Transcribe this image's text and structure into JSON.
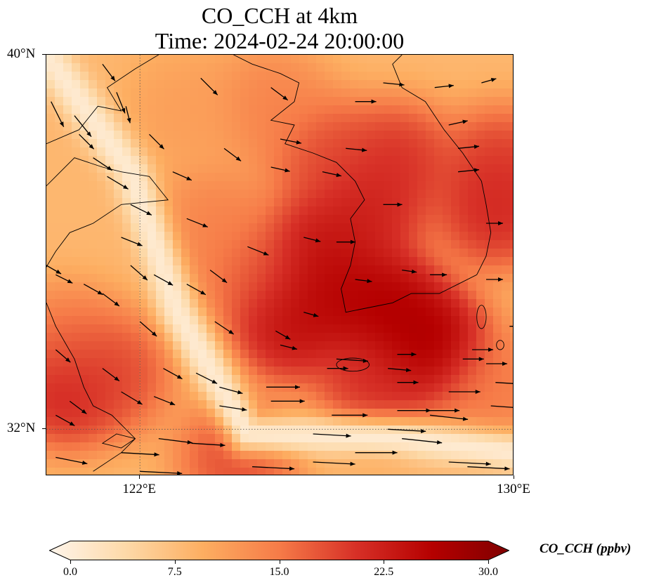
{
  "title": {
    "line1": "CO_CCH at 4km",
    "line2": "Time: 2024-02-24 20:00:00"
  },
  "map": {
    "extent": {
      "lon_min": 120.0,
      "lon_max": 130.0,
      "lat_min": 31.0,
      "lat_max": 40.0
    },
    "lat_ticks": [
      {
        "value": 40,
        "label": "40°N"
      },
      {
        "value": 32,
        "label": "32°N"
      }
    ],
    "lon_ticks": [
      {
        "value": 122,
        "label": "122°E"
      },
      {
        "value": 130,
        "label": "130°E"
      }
    ],
    "gridlines": {
      "lat": [
        32
      ],
      "lon": [
        122
      ],
      "style": "dotted"
    },
    "field_hotspots": [
      {
        "lon": 128.2,
        "lat": 33.8,
        "value": 29
      },
      {
        "lon": 127.3,
        "lat": 34.6,
        "value": 28
      },
      {
        "lon": 126.2,
        "lat": 34.9,
        "value": 27
      },
      {
        "lon": 125.2,
        "lat": 34.3,
        "value": 26
      },
      {
        "lon": 125.8,
        "lat": 35.8,
        "value": 25
      },
      {
        "lon": 126.8,
        "lat": 36.6,
        "value": 24
      },
      {
        "lon": 127.5,
        "lat": 37.7,
        "value": 22
      },
      {
        "lon": 126.0,
        "lat": 37.8,
        "value": 20
      },
      {
        "lon": 129.6,
        "lat": 36.7,
        "value": 23
      },
      {
        "lon": 129.7,
        "lat": 37.6,
        "value": 21
      },
      {
        "lon": 127.0,
        "lat": 33.0,
        "value": 22
      },
      {
        "lon": 124.5,
        "lat": 35.4,
        "value": 18
      },
      {
        "lon": 123.6,
        "lat": 36.4,
        "value": 15
      },
      {
        "lon": 124.8,
        "lat": 38.9,
        "value": 15
      },
      {
        "lon": 120.4,
        "lat": 32.9,
        "value": 24
      },
      {
        "lon": 121.4,
        "lat": 33.2,
        "value": 20
      },
      {
        "lon": 120.4,
        "lat": 33.8,
        "value": 16
      },
      {
        "lon": 124.1,
        "lat": 31.4,
        "value": 20
      },
      {
        "lon": 129.5,
        "lat": 32.9,
        "value": 16
      },
      {
        "lon": 123.0,
        "lat": 38.8,
        "value": 12
      }
    ],
    "field_background": 9,
    "field_low_band": {
      "value": 2,
      "points": [
        [
          120.0,
          40.0
        ],
        [
          121.8,
          37.5
        ],
        [
          122.8,
          34.5
        ],
        [
          124.3,
          31.9
        ],
        [
          127.5,
          31.8
        ],
        [
          130.0,
          31.5
        ]
      ]
    },
    "wind_vectors": [
      [
        120.1,
        39.0,
        0.3,
        -0.6
      ],
      [
        120.6,
        38.7,
        0.4,
        -0.5
      ],
      [
        120.7,
        38.3,
        0.35,
        -0.35
      ],
      [
        121.5,
        39.2,
        0.2,
        -0.5
      ],
      [
        121.7,
        38.9,
        0.1,
        -0.4
      ],
      [
        121.2,
        39.8,
        0.3,
        -0.4
      ],
      [
        123.3,
        39.5,
        0.4,
        -0.4
      ],
      [
        122.7,
        37.5,
        0.45,
        -0.2
      ],
      [
        122.2,
        38.3,
        0.35,
        -0.35
      ],
      [
        121.0,
        37.8,
        0.45,
        -0.3
      ],
      [
        121.3,
        37.4,
        0.5,
        -0.3
      ],
      [
        121.8,
        36.8,
        0.5,
        -0.25
      ],
      [
        121.6,
        36.1,
        0.5,
        -0.2
      ],
      [
        121.8,
        35.5,
        0.4,
        -0.35
      ],
      [
        120.8,
        35.1,
        0.45,
        -0.25
      ],
      [
        120.2,
        35.3,
        0.4,
        -0.2
      ],
      [
        120.0,
        35.5,
        0.35,
        -0.2
      ],
      [
        121.2,
        34.9,
        0.4,
        -0.3
      ],
      [
        122.3,
        35.3,
        0.45,
        -0.25
      ],
      [
        123.0,
        35.1,
        0.45,
        -0.25
      ],
      [
        123.5,
        35.4,
        0.4,
        -0.3
      ],
      [
        123.6,
        34.3,
        0.45,
        -0.3
      ],
      [
        122.0,
        34.3,
        0.4,
        -0.35
      ],
      [
        120.2,
        33.7,
        0.35,
        -0.3
      ],
      [
        121.2,
        33.3,
        0.4,
        -0.3
      ],
      [
        121.6,
        32.8,
        0.5,
        -0.3
      ],
      [
        120.5,
        32.6,
        0.4,
        -0.3
      ],
      [
        120.2,
        32.3,
        0.45,
        -0.25
      ],
      [
        122.3,
        32.7,
        0.5,
        -0.2
      ],
      [
        122.5,
        33.3,
        0.45,
        -0.25
      ],
      [
        123.2,
        33.2,
        0.5,
        -0.25
      ],
      [
        123.7,
        32.9,
        0.55,
        -0.15
      ],
      [
        123.7,
        32.5,
        0.65,
        -0.1
      ],
      [
        122.4,
        31.8,
        0.8,
        -0.1
      ],
      [
        123.1,
        31.7,
        0.8,
        -0.05
      ],
      [
        123.0,
        36.5,
        0.5,
        -0.2
      ],
      [
        124.3,
        35.9,
        0.5,
        -0.2
      ],
      [
        125.5,
        36.1,
        0.4,
        -0.1
      ],
      [
        125.0,
        38.2,
        0.5,
        -0.1
      ],
      [
        124.8,
        39.3,
        0.4,
        -0.3
      ],
      [
        123.8,
        38.0,
        0.4,
        -0.3
      ],
      [
        124.8,
        37.6,
        0.45,
        -0.1
      ],
      [
        125.9,
        37.5,
        0.45,
        -0.1
      ],
      [
        126.6,
        39.0,
        0.5,
        0.0
      ],
      [
        127.2,
        39.4,
        0.5,
        -0.05
      ],
      [
        128.3,
        39.3,
        0.45,
        0.05
      ],
      [
        129.3,
        39.4,
        0.35,
        0.1
      ],
      [
        128.6,
        38.5,
        0.45,
        0.1
      ],
      [
        128.8,
        37.5,
        0.5,
        0.05
      ],
      [
        129.4,
        36.4,
        0.4,
        0.0
      ],
      [
        128.8,
        38.0,
        0.5,
        0.05
      ],
      [
        126.4,
        38.0,
        0.5,
        -0.05
      ],
      [
        126.2,
        36.0,
        0.45,
        0.0
      ],
      [
        127.2,
        36.8,
        0.45,
        0.0
      ],
      [
        126.6,
        35.2,
        0.4,
        -0.05
      ],
      [
        127.6,
        35.4,
        0.35,
        -0.05
      ],
      [
        128.2,
        35.3,
        0.4,
        0.0
      ],
      [
        129.4,
        35.2,
        0.4,
        0.0
      ],
      [
        129.9,
        34.2,
        0.45,
        0.0
      ],
      [
        129.1,
        33.7,
        0.5,
        0.0
      ],
      [
        125.5,
        34.5,
        0.35,
        -0.1
      ],
      [
        125.0,
        33.8,
        0.4,
        -0.1
      ],
      [
        124.9,
        34.1,
        0.35,
        -0.2
      ],
      [
        126.0,
        33.3,
        0.5,
        0.0
      ],
      [
        127.5,
        33.6,
        0.45,
        0.0
      ],
      [
        127.3,
        33.3,
        0.55,
        -0.05
      ],
      [
        127.5,
        33.0,
        0.5,
        0.0
      ],
      [
        124.8,
        32.6,
        0.8,
        0.0
      ],
      [
        126.1,
        32.3,
        0.85,
        0.0
      ],
      [
        127.5,
        32.4,
        0.8,
        0.0
      ],
      [
        124.7,
        32.9,
        0.8,
        0.0
      ],
      [
        126.2,
        33.5,
        0.75,
        -0.05
      ],
      [
        128.2,
        32.4,
        0.7,
        0.0
      ],
      [
        128.9,
        33.5,
        0.5,
        0.0
      ],
      [
        129.4,
        33.4,
        0.5,
        0.0
      ],
      [
        128.6,
        32.8,
        0.75,
        0.0
      ],
      [
        128.2,
        32.3,
        0.9,
        -0.1
      ],
      [
        127.3,
        32.0,
        0.9,
        -0.05
      ],
      [
        127.6,
        31.8,
        0.95,
        -0.1
      ],
      [
        128.6,
        31.3,
        1.0,
        -0.05
      ],
      [
        125.7,
        31.9,
        0.9,
        -0.05
      ],
      [
        126.6,
        31.5,
        1.0,
        0.0
      ],
      [
        125.7,
        31.3,
        1.0,
        -0.05
      ],
      [
        121.6,
        31.5,
        0.9,
        -0.05
      ],
      [
        120.2,
        31.4,
        0.75,
        -0.15
      ],
      [
        122.0,
        31.1,
        1.0,
        -0.05
      ],
      [
        124.4,
        31.2,
        1.0,
        -0.05
      ],
      [
        129.0,
        31.2,
        1.0,
        -0.05
      ],
      [
        129.6,
        33.0,
        0.8,
        -0.05
      ],
      [
        129.5,
        32.5,
        0.7,
        -0.05
      ]
    ],
    "coastlines": [
      [
        [
          120.0,
          38.1
        ],
        [
          120.7,
          38.4
        ],
        [
          121.1,
          38.9
        ],
        [
          121.6,
          38.8
        ],
        [
          121.3,
          39.3
        ],
        [
          121.9,
          39.7
        ],
        [
          122.4,
          40.0
        ]
      ],
      [
        [
          120.0,
          37.2
        ],
        [
          120.6,
          37.8
        ],
        [
          121.2,
          37.6
        ],
        [
          121.6,
          37.5
        ],
        [
          122.2,
          37.4
        ],
        [
          122.6,
          36.9
        ],
        [
          121.6,
          36.8
        ],
        [
          121.0,
          36.4
        ],
        [
          120.5,
          36.2
        ],
        [
          120.2,
          35.8
        ],
        [
          119.9,
          35.3
        ]
      ],
      [
        [
          120.0,
          34.7
        ],
        [
          120.2,
          34.2
        ],
        [
          120.6,
          33.5
        ],
        [
          120.8,
          32.9
        ],
        [
          121.0,
          32.5
        ],
        [
          121.4,
          32.3
        ],
        [
          121.9,
          31.8
        ],
        [
          121.6,
          31.5
        ],
        [
          121.0,
          31.1
        ]
      ],
      [
        [
          121.9,
          31.8
        ],
        [
          121.6,
          31.6
        ],
        [
          121.2,
          31.7
        ],
        [
          121.5,
          31.9
        ],
        [
          121.9,
          31.8
        ]
      ],
      [
        [
          124.0,
          40.0
        ],
        [
          124.4,
          39.8
        ],
        [
          125.0,
          39.6
        ],
        [
          125.4,
          39.4
        ],
        [
          125.3,
          39.0
        ],
        [
          124.8,
          38.6
        ],
        [
          125.3,
          38.5
        ],
        [
          125.1,
          38.1
        ],
        [
          125.7,
          37.9
        ],
        [
          126.2,
          37.7
        ],
        [
          126.6,
          37.3
        ],
        [
          126.8,
          36.9
        ],
        [
          126.5,
          36.5
        ],
        [
          126.6,
          36.0
        ],
        [
          126.5,
          35.5
        ],
        [
          126.3,
          35.0
        ],
        [
          126.4,
          34.5
        ],
        [
          126.9,
          34.6
        ],
        [
          127.4,
          34.7
        ],
        [
          127.8,
          34.9
        ],
        [
          128.4,
          34.9
        ],
        [
          128.8,
          35.1
        ],
        [
          129.2,
          35.3
        ],
        [
          129.4,
          35.7
        ],
        [
          129.5,
          36.2
        ],
        [
          129.4,
          36.8
        ],
        [
          129.3,
          37.3
        ],
        [
          128.9,
          37.9
        ],
        [
          128.5,
          38.4
        ],
        [
          128.1,
          39.0
        ],
        [
          127.6,
          39.3
        ],
        [
          127.4,
          39.8
        ],
        [
          127.6,
          40.0
        ]
      ]
    ],
    "islands": [
      {
        "lon": 126.55,
        "lat": 33.38,
        "rx": 0.35,
        "ry": 0.14
      },
      {
        "lon": 129.3,
        "lat": 34.4,
        "rx": 0.1,
        "ry": 0.25
      },
      {
        "lon": 129.7,
        "lat": 33.8,
        "rx": 0.08,
        "ry": 0.1
      }
    ]
  },
  "colorbar": {
    "min": 0.0,
    "max": 30.0,
    "ticks": [
      "0.0",
      "7.5",
      "15.0",
      "22.5",
      "30.0"
    ],
    "label": "CO_CCH (ppbv)",
    "colormap": [
      "#fff5eb",
      "#fdd9a8",
      "#fdae61",
      "#f67b48",
      "#d73027",
      "#b50000",
      "#800000"
    ]
  }
}
